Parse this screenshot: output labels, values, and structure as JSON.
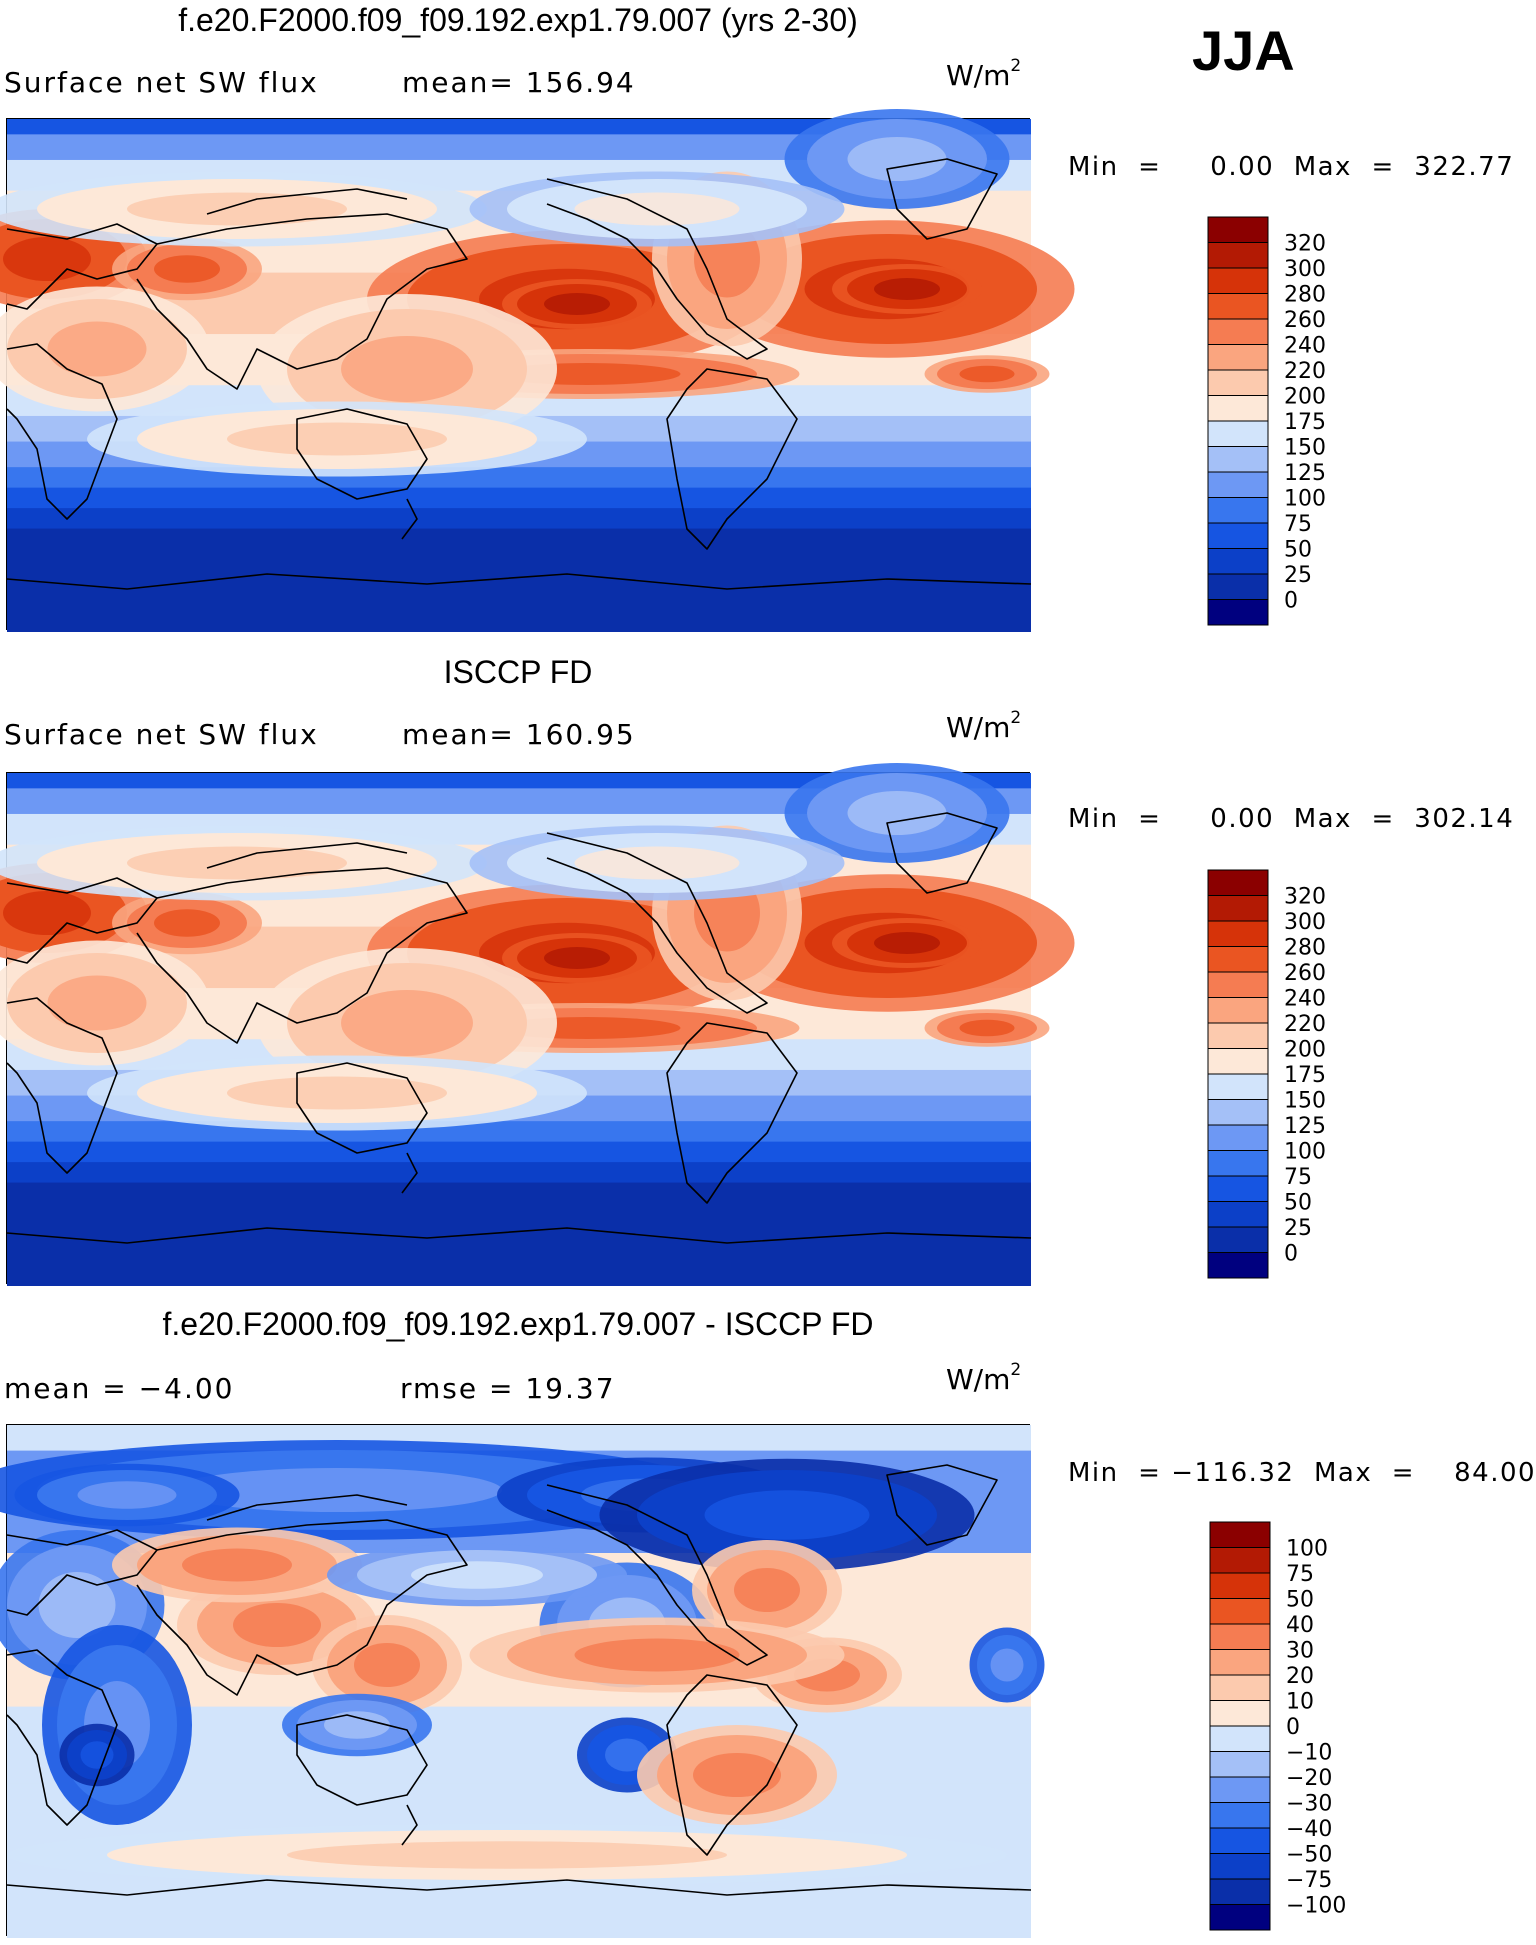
{
  "season": "JJA",
  "panels": [
    {
      "title": "f.e20.F2000.f09_f09.192.exp1.79.007 (yrs 2-30)",
      "subtitle_left": "Surface net SW flux",
      "subtitle_mid": "mean=  156.94",
      "units_base": "W/m",
      "units_exp": "2",
      "minmax": "Min  =     0.00  Max  =  322.77"
    },
    {
      "title": "ISCCP FD",
      "subtitle_left": "Surface net SW flux",
      "subtitle_mid": "mean=  160.95",
      "units_base": "W/m",
      "units_exp": "2",
      "minmax": "Min  =     0.00  Max  =  302.14"
    },
    {
      "title": "f.e20.F2000.f09_f09.192.exp1.79.007 - ISCCP FD",
      "subtitle_left": "mean  =   −4.00",
      "subtitle_mid": "rmse  =    19.37",
      "units_base": "W/m",
      "units_exp": "2",
      "minmax": "Min  = −116.32  Max  =    84.00"
    }
  ],
  "chart_data": [
    {
      "type": "heatmap",
      "title": "f.e20.F2000.f09_f09.192.exp1.79.007 (yrs 2-30)",
      "variable": "Surface net SW flux",
      "units": "W/m2",
      "mean": 156.94,
      "min": 0.0,
      "max": 322.77,
      "colorbar": {
        "levels": [
          0,
          25,
          50,
          75,
          100,
          125,
          150,
          175,
          200,
          220,
          240,
          260,
          280,
          300,
          320
        ],
        "tick_labels": [
          "320",
          "300",
          "280",
          "260",
          "240",
          "220",
          "200",
          "175",
          "150",
          "125",
          "100",
          "75",
          "50",
          "25",
          "0"
        ],
        "colors": [
          "#00007f",
          "#0a2fa9",
          "#0c40c8",
          "#1655e2",
          "#3876ee",
          "#6d98f4",
          "#a4c0f7",
          "#d2e4fb",
          "#fde8d8",
          "#fccaae",
          "#faa57f",
          "#f57c52",
          "#ea5522",
          "#d63309",
          "#b31a04",
          "#8b0000"
        ]
      }
    },
    {
      "type": "heatmap",
      "title": "ISCCP FD",
      "variable": "Surface net SW flux",
      "units": "W/m2",
      "mean": 160.95,
      "min": 0.0,
      "max": 302.14,
      "colorbar": {
        "levels": [
          0,
          25,
          50,
          75,
          100,
          125,
          150,
          175,
          200,
          220,
          240,
          260,
          280,
          300,
          320
        ],
        "tick_labels": [
          "320",
          "300",
          "280",
          "260",
          "240",
          "220",
          "200",
          "175",
          "150",
          "125",
          "100",
          "75",
          "50",
          "25",
          "0"
        ],
        "colors": [
          "#00007f",
          "#0a2fa9",
          "#0c40c8",
          "#1655e2",
          "#3876ee",
          "#6d98f4",
          "#a4c0f7",
          "#d2e4fb",
          "#fde8d8",
          "#fccaae",
          "#faa57f",
          "#f57c52",
          "#ea5522",
          "#d63309",
          "#b31a04",
          "#8b0000"
        ]
      }
    },
    {
      "type": "heatmap",
      "title": "f.e20.F2000.f09_f09.192.exp1.79.007 - ISCCP FD",
      "units": "W/m2",
      "mean": -4.0,
      "rmse": 19.37,
      "min": -116.32,
      "max": 84.0,
      "colorbar": {
        "levels": [
          -100,
          -75,
          -50,
          -40,
          -30,
          -20,
          -10,
          0,
          10,
          20,
          30,
          40,
          50,
          75,
          100
        ],
        "tick_labels": [
          "100",
          "75",
          "50",
          "40",
          "30",
          "20",
          "10",
          "0",
          "−10",
          "−20",
          "−30",
          "−40",
          "−50",
          "−75",
          "−100"
        ],
        "colors": [
          "#00007f",
          "#0a2fa9",
          "#0c40c8",
          "#1655e2",
          "#3876ee",
          "#6d98f4",
          "#a4c0f7",
          "#d2e4fb",
          "#fde8d8",
          "#fccaae",
          "#faa57f",
          "#f57c52",
          "#ea5522",
          "#d63309",
          "#b31a04",
          "#8b0000"
        ]
      }
    }
  ]
}
